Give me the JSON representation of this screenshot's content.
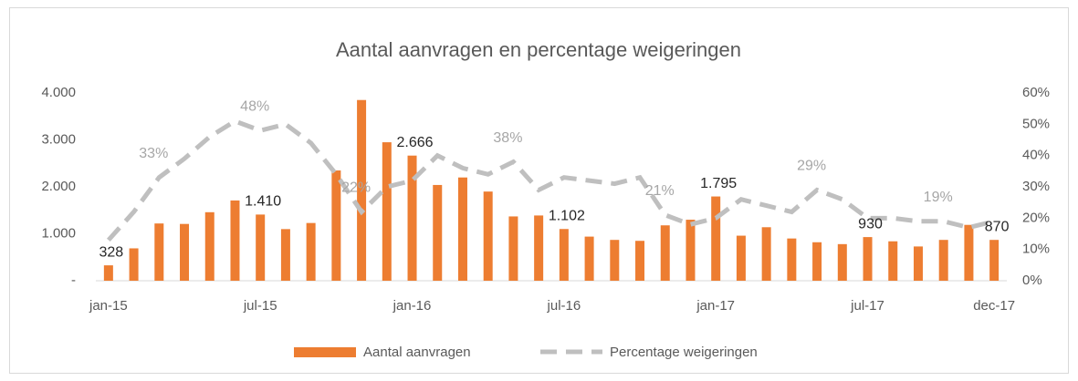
{
  "chart_data": {
    "type": "bar",
    "title": "Aantal aanvragen en percentage weigeringen",
    "categories": [
      "jan-15",
      null,
      null,
      null,
      null,
      null,
      "jul-15",
      null,
      null,
      null,
      null,
      null,
      "jan-16",
      null,
      null,
      null,
      null,
      null,
      "jul-16",
      null,
      null,
      null,
      null,
      null,
      "jan-17",
      null,
      null,
      null,
      null,
      null,
      "jul-17",
      null,
      null,
      null,
      null,
      "dec-17"
    ],
    "series": [
      {
        "name": "Aantal aanvragen",
        "type": "bar",
        "color": "#ed7d31",
        "values": [
          328,
          690,
          1220,
          1210,
          1460,
          1710,
          1410,
          1100,
          1230,
          2350,
          3850,
          2950,
          2666,
          2040,
          2200,
          1900,
          1370,
          1390,
          1102,
          940,
          870,
          850,
          1180,
          1300,
          1795,
          960,
          1140,
          900,
          820,
          780,
          930,
          840,
          730,
          870,
          1190,
          870
        ],
        "value_labels": [
          "328",
          null,
          null,
          null,
          null,
          null,
          "1.410",
          null,
          null,
          null,
          null,
          null,
          "2.666",
          null,
          null,
          null,
          null,
          null,
          "1.102",
          null,
          null,
          null,
          null,
          null,
          "1.795",
          null,
          null,
          null,
          null,
          null,
          "930",
          null,
          null,
          null,
          null,
          "870"
        ]
      },
      {
        "name": "Percentage weigeringen",
        "type": "line",
        "axis": "y2",
        "color": "#bfbfbf",
        "values": [
          13,
          22,
          33,
          39,
          46,
          51,
          48,
          50,
          44,
          34,
          22,
          30,
          32,
          40,
          36,
          34,
          38,
          29,
          33,
          32,
          31,
          33,
          21,
          18,
          20,
          26,
          24,
          22,
          29,
          26,
          20,
          20,
          19,
          19,
          17,
          19
        ],
        "value_labels": [
          null,
          null,
          "33%",
          null,
          null,
          null,
          "48%",
          null,
          null,
          null,
          "22%",
          null,
          null,
          null,
          null,
          null,
          "38%",
          null,
          null,
          null,
          null,
          null,
          "21%",
          null,
          null,
          null,
          null,
          null,
          "29%",
          null,
          null,
          null,
          null,
          "19%",
          null,
          null
        ]
      }
    ],
    "ylim": [
      0,
      4000
    ],
    "yticks": [
      {
        "value": 0,
        "label": "-"
      },
      {
        "value": 1000,
        "label": "1.000"
      },
      {
        "value": 2000,
        "label": "2.000"
      },
      {
        "value": 3000,
        "label": "3.000"
      },
      {
        "value": 4000,
        "label": "4.000"
      }
    ],
    "y2lim": [
      0,
      60
    ],
    "y2ticks": [
      {
        "value": 0,
        "label": "0%"
      },
      {
        "value": 10,
        "label": "10%"
      },
      {
        "value": 20,
        "label": "20%"
      },
      {
        "value": 30,
        "label": "30%"
      },
      {
        "value": 40,
        "label": "40%"
      },
      {
        "value": 50,
        "label": "50%"
      },
      {
        "value": 60,
        "label": "60%"
      }
    ],
    "legend": "bottom"
  }
}
